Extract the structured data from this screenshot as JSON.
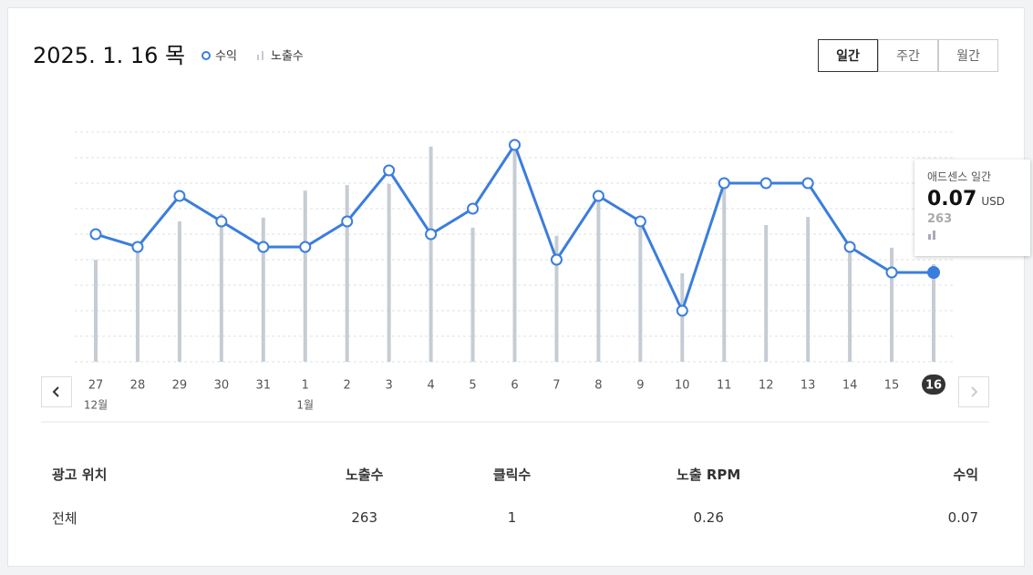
{
  "header": {
    "title": "2025. 1. 16 목",
    "legend": [
      "수익",
      "노출수"
    ],
    "tabs": [
      "일간",
      "주간",
      "월간"
    ]
  },
  "chart_data": {
    "type": "line-bar",
    "categories": [
      "27",
      "28",
      "29",
      "30",
      "31",
      "1",
      "2",
      "3",
      "4",
      "5",
      "6",
      "7",
      "8",
      "9",
      "10",
      "11",
      "12",
      "13",
      "14",
      "15",
      "16"
    ],
    "month_labels": [
      "12월",
      null,
      null,
      null,
      null,
      "1월",
      null,
      null,
      null,
      null,
      null,
      null,
      null,
      null,
      null,
      null,
      null,
      null,
      null,
      null,
      null
    ],
    "series": [
      {
        "name": "수익",
        "color": "#3b7ddd",
        "values": [
          0.1,
          0.09,
          0.13,
          0.11,
          0.09,
          0.09,
          0.11,
          0.15,
          0.1,
          0.12,
          0.17,
          0.08,
          0.13,
          0.11,
          0.04,
          0.14,
          0.14,
          0.14,
          0.09,
          0.07,
          0.07
        ]
      },
      {
        "name": "노출수",
        "color": "#c5ccd3",
        "axis": "y2",
        "values": [
          275,
          308,
          379,
          399,
          389,
          462,
          477,
          480,
          581,
          362,
          571,
          340,
          448,
          362,
          239,
          472,
          369,
          391,
          312,
          308,
          263
        ]
      }
    ],
    "ylim": [
      0,
      0.18
    ],
    "yticks": [
      0,
      0.02,
      0.04,
      0.06,
      0.08,
      0.1,
      0.12,
      0.14,
      0.16,
      0.18
    ],
    "y2lim": [
      0,
      620
    ],
    "grid": true,
    "selected": 20,
    "tooltip": {
      "title": "애드센스 일간",
      "value": 0.07,
      "unit": "USD",
      "impressions": 263
    }
  },
  "table": {
    "header": [
      "광고 위치",
      "노출수",
      "클릭수",
      "노출 RPM",
      "수익"
    ],
    "rows": [
      [
        "전체",
        "263",
        "1",
        "0.26",
        "0.07"
      ]
    ]
  }
}
